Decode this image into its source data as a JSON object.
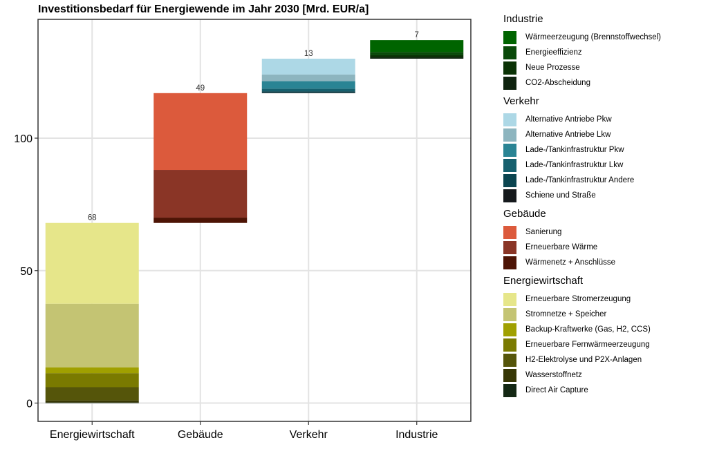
{
  "chart_data": {
    "type": "bar",
    "stacked": "waterfall",
    "title": "Investitionsbedarf für Energiewende im Jahr 2030 [Mrd. EUR/a]",
    "xlabel": "",
    "ylabel": "",
    "ylim": [
      -7,
      145
    ],
    "yticks": [
      0,
      50,
      100
    ],
    "grid": true,
    "legend_position": "right",
    "categories": [
      "Energiewirtschaft",
      "Gebäude",
      "Verkehr",
      "Industrie"
    ],
    "totals": [
      68,
      49,
      13,
      7
    ],
    "total_labels": [
      "68",
      "49",
      "13",
      "7"
    ],
    "groups": [
      {
        "name": "Industrie",
        "category": "Industrie",
        "segments": [
          {
            "label": "Wärmeerzeugung (Brennstoffwechsel)",
            "value": 4.5,
            "color": "#006400"
          },
          {
            "label": "Energieeffizienz",
            "value": 1.2,
            "color": "#0a4a0a"
          },
          {
            "label": "Neue Prozesse",
            "value": 0.8,
            "color": "#0a3205"
          },
          {
            "label": "CO2-Abscheidung",
            "value": 0.5,
            "color": "#0f230f"
          }
        ]
      },
      {
        "name": "Verkehr",
        "category": "Verkehr",
        "segments": [
          {
            "label": "Alternative Antriebe Pkw",
            "value": 6.0,
            "color": "#add8e6"
          },
          {
            "label": "Alternative Antriebe Lkw",
            "value": 2.5,
            "color": "#8db5bf"
          },
          {
            "label": "Lade-/Tankinfrastruktur Pkw",
            "value": 2.8,
            "color": "#2a8494"
          },
          {
            "label": "Lade-/Tankinfrastruktur Lkw",
            "value": 1.0,
            "color": "#16606e"
          },
          {
            "label": "Lade-/Tankinfrastruktur Andere",
            "value": 0.5,
            "color": "#0b4550"
          },
          {
            "label": "Schiene und Straße",
            "value": 0.2,
            "color": "#15191c"
          }
        ]
      },
      {
        "name": "Gebäude",
        "category": "Gebäude",
        "segments": [
          {
            "label": "Sanierung",
            "value": 29,
            "color": "#dc5a3c"
          },
          {
            "label": "Erneuerbare Wärme",
            "value": 18,
            "color": "#8a3526"
          },
          {
            "label": "Wärmenetz + Anschlüsse",
            "value": 2,
            "color": "#4d1405"
          }
        ]
      },
      {
        "name": "Energiewirtschaft",
        "category": "Energiewirtschaft",
        "segments": [
          {
            "label": "Erneuerbare Stromerzeugung",
            "value": 30.5,
            "color": "#e6e68a"
          },
          {
            "label": "Stromnetze + Speicher",
            "value": 24,
            "color": "#c4c473"
          },
          {
            "label": "Backup-Kraftwerke (Gas, H2, CCS)",
            "value": 2.2,
            "color": "#a0a000"
          },
          {
            "label": "Erneuerbare Fernwärmeerzeugung",
            "value": 5.3,
            "color": "#7a7a00"
          },
          {
            "label": "H2-Elektrolyse und P2X-Anlagen",
            "value": 5.0,
            "color": "#55550a"
          },
          {
            "label": "Wasserstoffnetz",
            "value": 0.8,
            "color": "#373705"
          },
          {
            "label": "Direct Air Capture",
            "value": 0.2,
            "color": "#142814"
          }
        ]
      }
    ]
  }
}
